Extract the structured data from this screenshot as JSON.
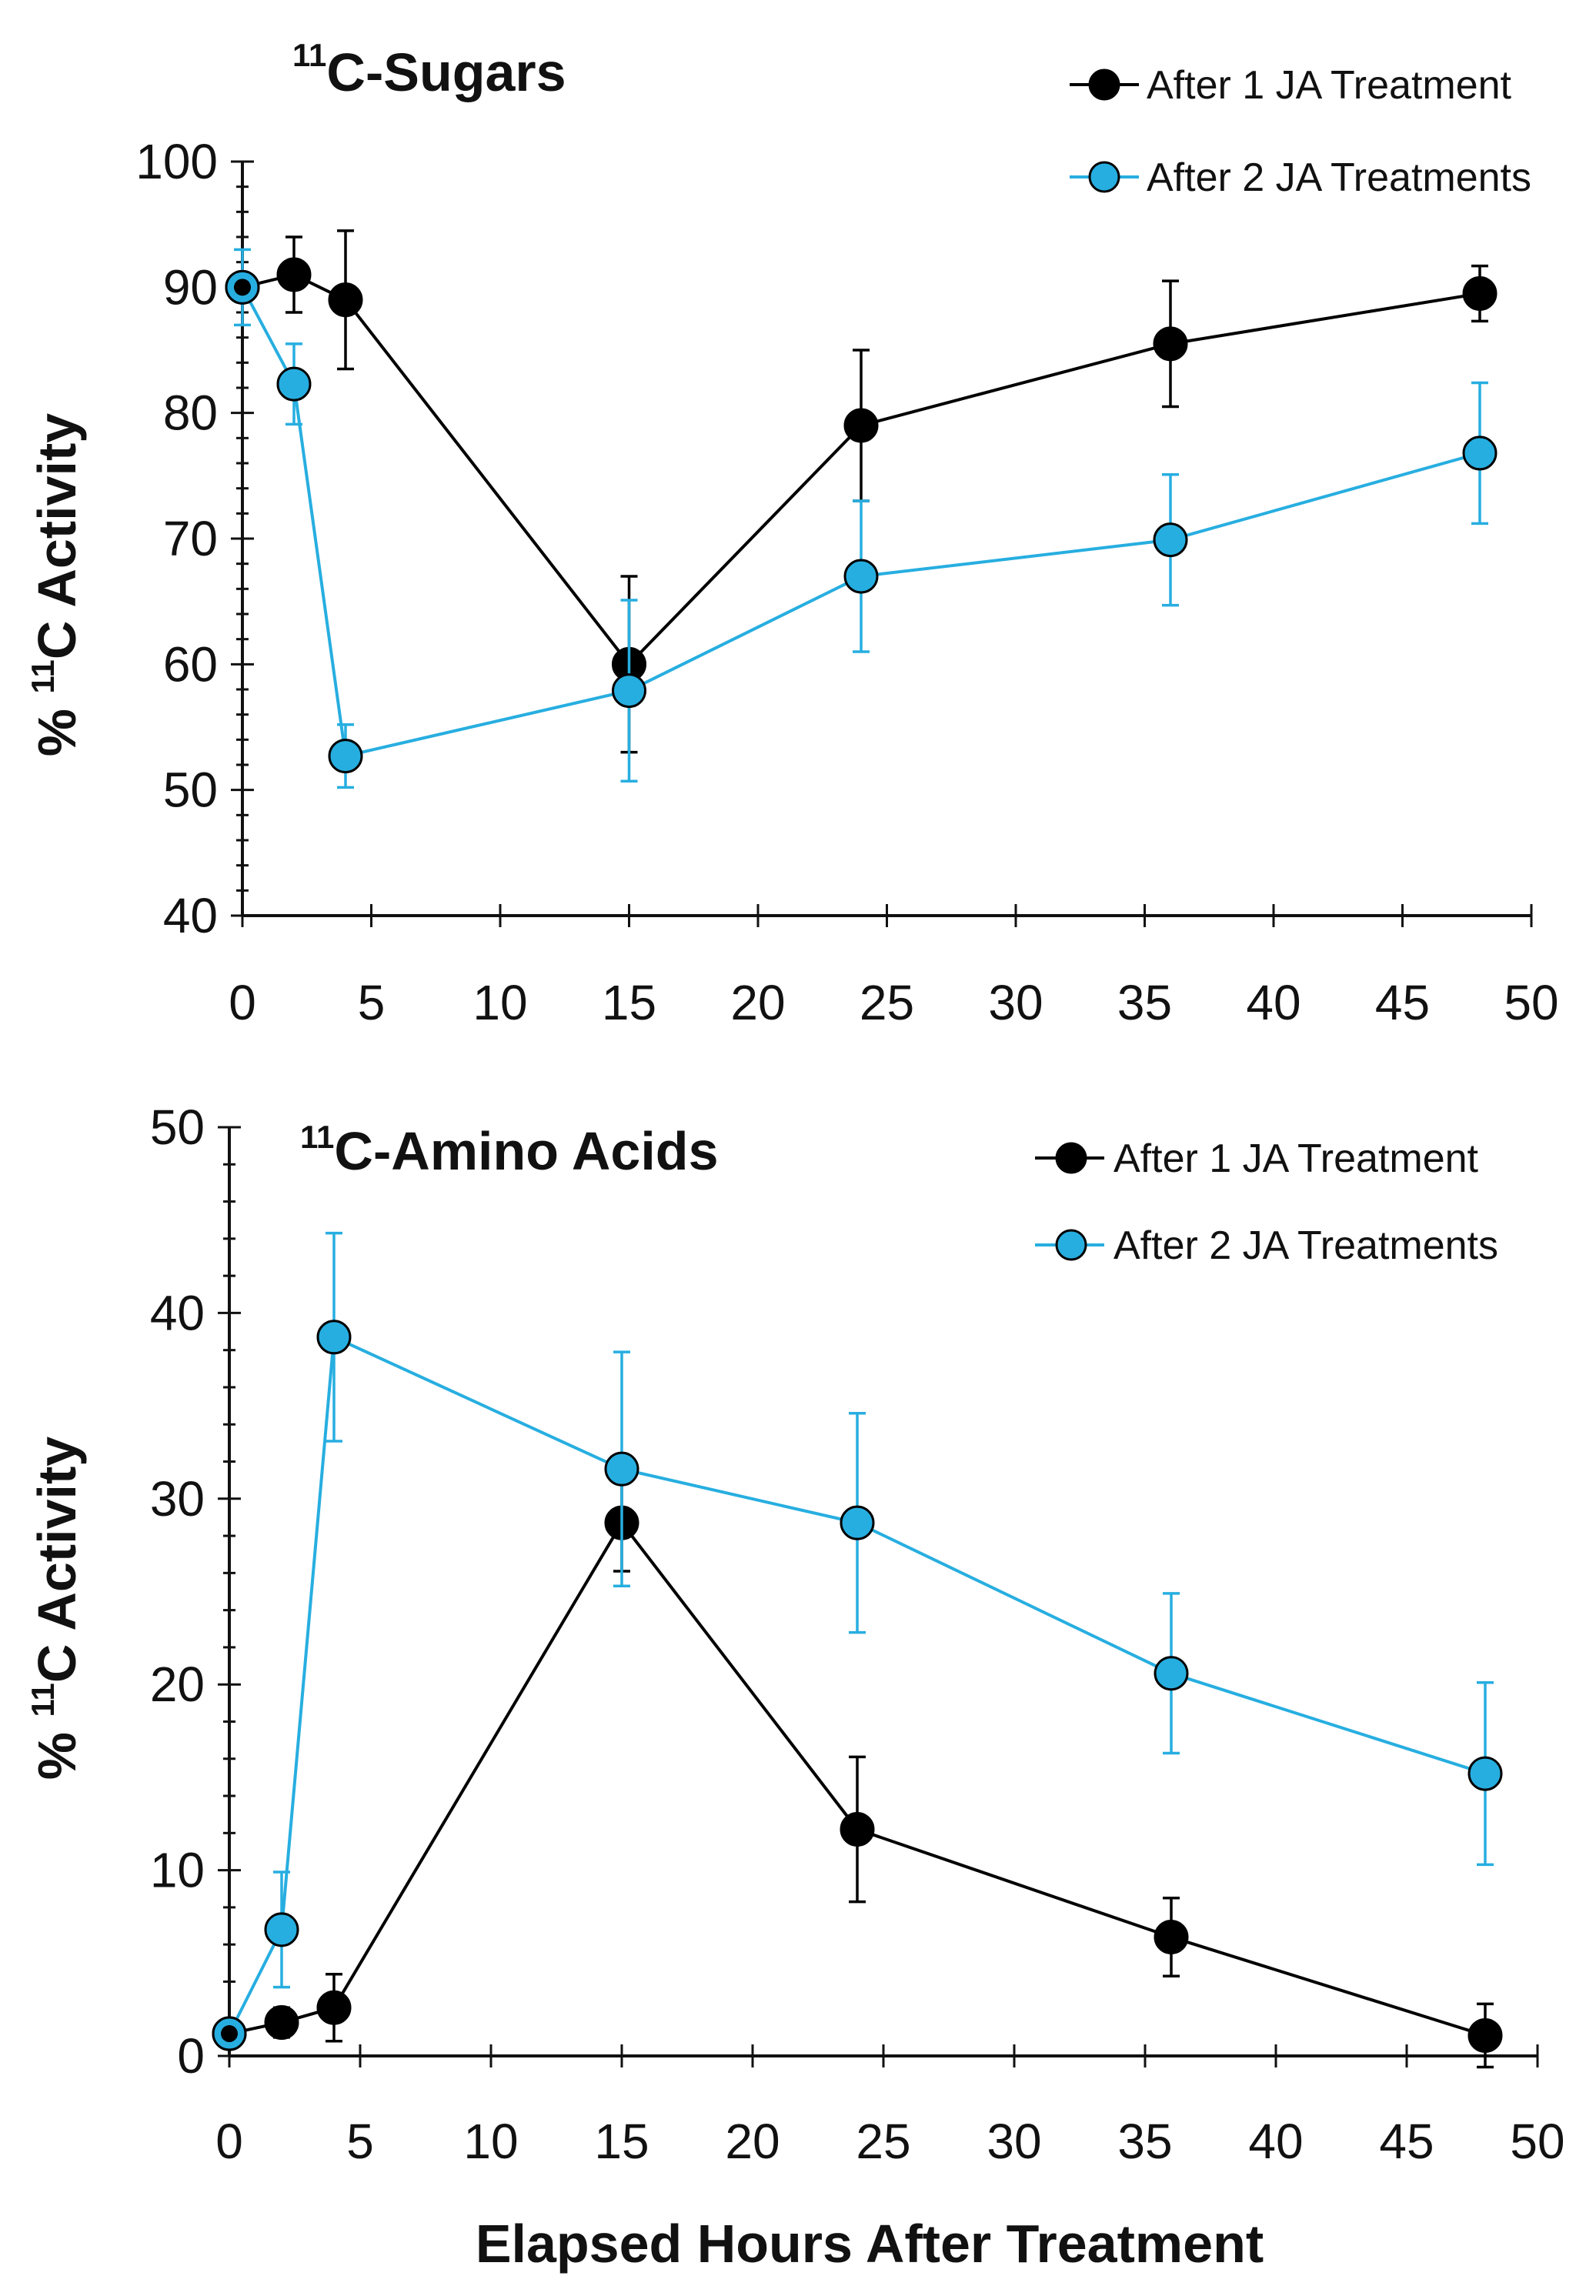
{
  "colors": {
    "series1": "#000000",
    "series2": "#27aee0",
    "axis": "#111111"
  },
  "xlabel": "Elapsed Hours After Treatment",
  "chart_data": [
    {
      "type": "line",
      "title_sup": "11",
      "title_main": "C-Sugars",
      "ylabel_prefix": "% ",
      "ylabel_sup": "11",
      "ylabel_main": "C Activity",
      "xlim": [
        0,
        50
      ],
      "ylim": [
        40,
        100
      ],
      "x_ticks": [
        "0",
        "5",
        "10",
        "15",
        "20",
        "25",
        "30",
        "35",
        "40",
        "45",
        "50"
      ],
      "y_ticks": [
        "40",
        "50",
        "60",
        "70",
        "80",
        "90",
        "100"
      ],
      "legend_position": "top-right",
      "series": [
        {
          "name": "After 1 JA Treatment",
          "color": "#000000",
          "x": [
            0,
            2,
            4,
            15,
            24,
            36,
            48
          ],
          "y": [
            90,
            91,
            89,
            60,
            79,
            85.5,
            89.5
          ],
          "err": [
            0,
            3,
            5.5,
            7,
            6,
            5,
            2.2
          ]
        },
        {
          "name": "After 2 JA Treatments",
          "color": "#27aee0",
          "x": [
            0,
            2,
            4,
            15,
            24,
            36,
            48
          ],
          "y": [
            90,
            82.3,
            52.7,
            57.9,
            67,
            69.9,
            76.8
          ],
          "err": [
            3,
            3.2,
            2.5,
            7.2,
            6,
            5.2,
            5.6
          ]
        }
      ]
    },
    {
      "type": "line",
      "title_sup": "11",
      "title_main": "C-Amino Acids",
      "ylabel_prefix": "% ",
      "ylabel_sup": "11",
      "ylabel_main": "C Activity",
      "xlim": [
        0,
        50
      ],
      "ylim": [
        0,
        50
      ],
      "x_ticks": [
        "0",
        "5",
        "10",
        "15",
        "20",
        "25",
        "30",
        "35",
        "40",
        "45",
        "50"
      ],
      "y_ticks": [
        "0",
        "10",
        "20",
        "30",
        "40",
        "50"
      ],
      "legend_position": "top-right",
      "series": [
        {
          "name": "After 1 JA Treatment",
          "color": "#000000",
          "x": [
            0,
            2,
            4,
            15,
            24,
            36,
            48
          ],
          "y": [
            1.2,
            1.8,
            2.6,
            28.7,
            12.2,
            6.4,
            1.1
          ],
          "err": [
            0,
            0.8,
            1.8,
            2.6,
            3.9,
            2.1,
            1.7
          ]
        },
        {
          "name": "After 2 JA Treatments",
          "color": "#27aee0",
          "x": [
            0,
            2,
            4,
            15,
            24,
            36,
            48
          ],
          "y": [
            1.2,
            6.8,
            38.7,
            31.6,
            28.7,
            20.6,
            15.2
          ],
          "err": [
            0,
            3.1,
            5.6,
            6.3,
            5.9,
            4.3,
            4.9
          ]
        }
      ]
    }
  ]
}
